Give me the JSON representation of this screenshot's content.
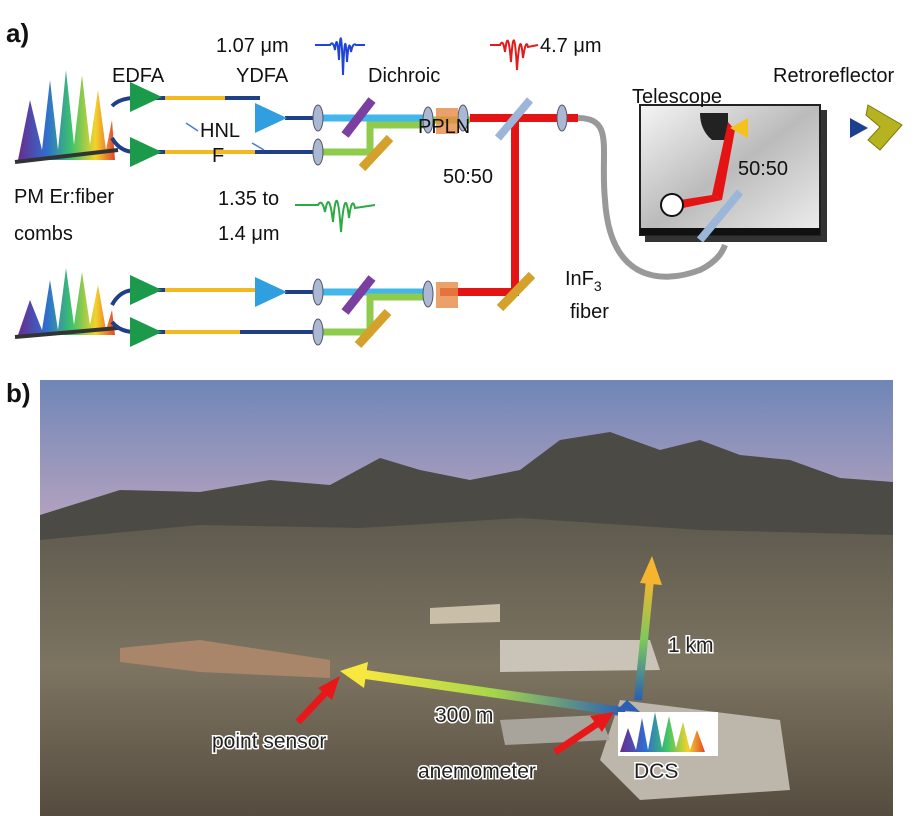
{
  "panel_a": {
    "label": "a)",
    "labels": {
      "edfa": "EDFA",
      "ydfa": "YDFA",
      "wl_1070": "1.07 μm",
      "dichroic": "Dichroic",
      "wl_4700": "4.7 μm",
      "retroreflector": "Retroreflector",
      "telescope": "Telescope",
      "hnlf_1": "HNL",
      "hnlf_2": "F",
      "ppln": "PPLN",
      "split_1": "50:50",
      "split_2": "50:50",
      "combs_1": "PM Er:fiber",
      "combs_2": "combs",
      "wl_1350_1": "1.35 to",
      "wl_1350_2": "1.4 μm",
      "fiber_1": "InF",
      "fiber_1_sub": "3",
      "fiber_2": "fiber"
    }
  },
  "panel_b": {
    "label": "b)",
    "labels": {
      "vertical": "1 km",
      "horizontal": "300 m",
      "point_sensor": "point sensor",
      "anemometer": "anemometer",
      "dcs": "DCS"
    }
  }
}
